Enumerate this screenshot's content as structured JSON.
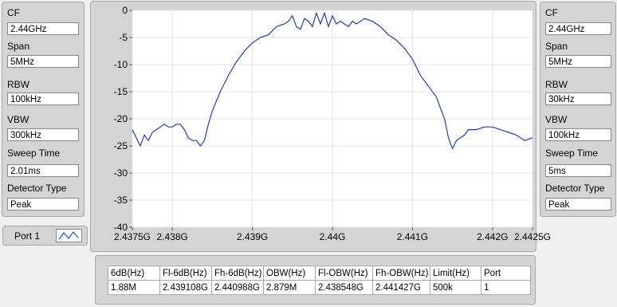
{
  "left_panel": {
    "fields": [
      {
        "label": "CF",
        "value": "2.44GHz"
      },
      {
        "label": "Span",
        "value": "5MHz"
      },
      {
        "label": "RBW",
        "value": "100kHz"
      },
      {
        "label": "VBW",
        "value": "300kHz"
      },
      {
        "label": "Sweep Time",
        "value": "2.01ms"
      },
      {
        "label": "Detector Type",
        "value": "Peak"
      }
    ]
  },
  "right_panel": {
    "fields": [
      {
        "label": "CF",
        "value": "2.44GHz"
      },
      {
        "label": "Span",
        "value": "5MHz"
      },
      {
        "label": "RBW",
        "value": "30kHz"
      },
      {
        "label": "VBW",
        "value": "100kHz"
      },
      {
        "label": "Sweep Time",
        "value": "5ms"
      },
      {
        "label": "Detector Type",
        "value": "Peak"
      }
    ]
  },
  "port_control": {
    "label": "Port 1",
    "icon": "waveform-icon"
  },
  "chart_data": {
    "type": "line",
    "xlabel": "",
    "ylabel": "",
    "xlim": [
      2.4375,
      2.4425
    ],
    "ylim": [
      -40,
      0
    ],
    "x_ticks": [
      2.4375,
      2.438,
      2.439,
      2.44,
      2.441,
      2.442,
      2.4425
    ],
    "x_tick_labels": [
      "2.4375G",
      "2.438G",
      "2.439G",
      "2.44G",
      "2.441G",
      "2.442G",
      "2.4425G"
    ],
    "y_ticks": [
      0,
      -5,
      -10,
      -15,
      -20,
      -25,
      -30,
      -35,
      -40
    ],
    "y_tick_labels": [
      "0",
      "-5",
      "-10",
      "-15",
      "-20",
      "-25",
      "-30",
      "-35",
      "-40"
    ],
    "grid": true,
    "line_color": "#1f3fbf",
    "series": [
      {
        "x": [
          2.4375,
          2.43755,
          2.4376,
          2.43765,
          2.4377,
          2.43775,
          2.4378,
          2.43785,
          2.4379,
          2.43795,
          2.438,
          2.43805,
          2.4381,
          2.43815,
          2.4382,
          2.43825,
          2.4383,
          2.43835,
          2.4384,
          2.43845,
          2.4385,
          2.4386,
          2.4387,
          2.4388,
          2.4389,
          2.439,
          2.4391,
          2.4392,
          2.4393,
          2.4394,
          2.43945,
          2.4395,
          2.43955,
          2.4396,
          2.43965,
          2.4397,
          2.43975,
          2.4398,
          2.43985,
          2.4399,
          2.43995,
          2.44,
          2.44005,
          2.4401,
          2.44015,
          2.4402,
          2.44025,
          2.4403,
          2.4404,
          2.4405,
          2.4406,
          2.4407,
          2.4408,
          2.4409,
          2.441,
          2.4411,
          2.4412,
          2.4413,
          2.44135,
          2.4414,
          2.44145,
          2.4415,
          2.44155,
          2.4416,
          2.44165,
          2.4417,
          2.4418,
          2.4419,
          2.442,
          2.4421,
          2.4422,
          2.4423,
          2.4424,
          2.4425
        ],
        "y": [
          -22,
          -23.5,
          -25,
          -23,
          -24,
          -22.5,
          -22,
          -21.5,
          -21,
          -21.5,
          -21.5,
          -21,
          -21,
          -22,
          -23.5,
          -24,
          -24,
          -25,
          -24,
          -21,
          -18.5,
          -15,
          -12,
          -9.5,
          -7.5,
          -6,
          -5,
          -4.5,
          -3,
          -2.5,
          -2,
          -1,
          -3,
          -3.5,
          -1.5,
          -2,
          -3,
          -0.5,
          -2.5,
          -0.5,
          -3,
          -1,
          -2.5,
          -2,
          -2.5,
          -3,
          -2,
          -2.5,
          -1.5,
          -2,
          -3,
          -4.5,
          -5.5,
          -7,
          -9,
          -12,
          -14,
          -16,
          -18,
          -20,
          -23.5,
          -25.5,
          -24,
          -23.5,
          -23,
          -22,
          -22,
          -21.5,
          -21.5,
          -22,
          -22.5,
          -23,
          -24,
          -23.5
        ]
      }
    ]
  },
  "results_table": {
    "headers": [
      "6dB(Hz)",
      "Fl-6dB(Hz)",
      "Fh-6dB(Hz)",
      "OBW(Hz)",
      "Fl-OBW(Hz)",
      "Fh-OBW(Hz)",
      "Limit(Hz)",
      "Port"
    ],
    "rows": [
      [
        "1.88M",
        "2.439108G",
        "2.440988G",
        "2.879M",
        "2.438548G",
        "2.441427G",
        "500k",
        "1"
      ]
    ]
  }
}
